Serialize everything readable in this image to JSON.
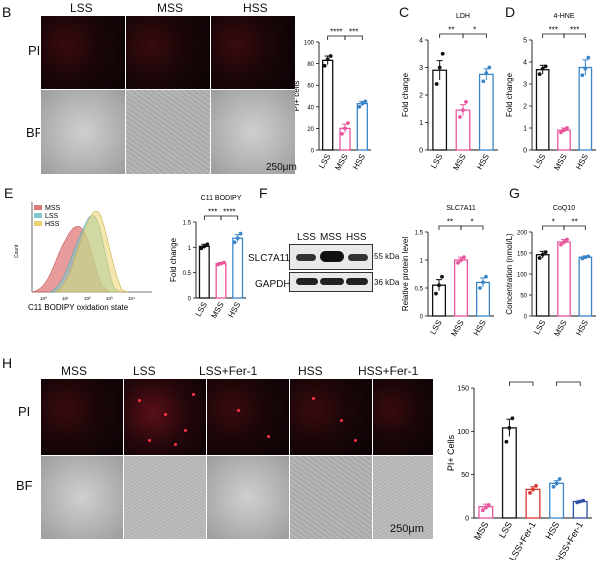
{
  "panels": {
    "B": {
      "label": "B",
      "columns": [
        "LSS",
        "MSS",
        "HSS"
      ],
      "rows": [
        "PI",
        "BF"
      ],
      "scale": "250μm"
    },
    "E": {
      "label": "E",
      "xlabel": "C11 BODIPY oxidation state",
      "ylabel": "Count",
      "legend": [
        "MSS",
        "LSS",
        "HSS"
      ]
    },
    "F": {
      "label": "F",
      "lanes": [
        "LSS",
        "MSS",
        "HSS"
      ],
      "rows": [
        "SLC7A11",
        "GAPDH"
      ],
      "sizes": [
        "55 kDa",
        "36 kDa"
      ]
    },
    "H": {
      "label": "H",
      "columns": [
        "MSS",
        "LSS",
        "LSS+Fer-1",
        "HSS",
        "HSS+Fer-1"
      ],
      "rows": [
        "PI",
        "BF"
      ],
      "scale": "250μm"
    }
  },
  "colors": {
    "LSS": "#111111",
    "MSS": "#e8559c",
    "HSS": "#3a86c8",
    "LSSFer": "#d9382e",
    "HSSFer": "#2e4fa8",
    "flow_MSS": "#e07a7a",
    "flow_LSS": "#7fc9cf",
    "flow_HSS": "#e9d36b"
  },
  "chart_data": [
    {
      "id": "B",
      "type": "bar",
      "title": "",
      "ylabel": "PI+ cells",
      "categories": [
        "LSS",
        "MSS",
        "HSS"
      ],
      "values": [
        83,
        20,
        43
      ],
      "errors": [
        4,
        4,
        2
      ],
      "points": [
        [
          78,
          84,
          87
        ],
        [
          15,
          20,
          25
        ],
        [
          40,
          43,
          45
        ]
      ],
      "ylim": [
        0,
        100
      ],
      "yticks": [
        0,
        20,
        40,
        60,
        80,
        100
      ],
      "sig": [
        {
          "from": 0,
          "to": 1,
          "label": "****"
        },
        {
          "from": 1,
          "to": 2,
          "label": "***"
        }
      ]
    },
    {
      "id": "C",
      "type": "bar",
      "title": "LDH",
      "ylabel": "Fold change",
      "categories": [
        "LSS",
        "MSS",
        "HSS"
      ],
      "values": [
        2.9,
        1.45,
        2.75
      ],
      "errors": [
        0.35,
        0.2,
        0.2
      ],
      "points": [
        [
          2.4,
          3.0,
          3.5
        ],
        [
          1.2,
          1.45,
          1.75
        ],
        [
          2.5,
          2.8,
          3.0
        ]
      ],
      "ylim": [
        0,
        4
      ],
      "yticks": [
        0,
        1,
        2,
        3,
        4
      ],
      "sig": [
        {
          "from": 0,
          "to": 1,
          "label": "**"
        },
        {
          "from": 1,
          "to": 2,
          "label": "*"
        }
      ]
    },
    {
      "id": "D",
      "type": "bar",
      "title": "4-HNE",
      "ylabel": "Fold change",
      "categories": [
        "LSS",
        "MSS",
        "HSS"
      ],
      "values": [
        3.65,
        0.9,
        3.75
      ],
      "errors": [
        0.2,
        0.1,
        0.35
      ],
      "points": [
        [
          3.45,
          3.7,
          3.8
        ],
        [
          0.8,
          0.9,
          1.0
        ],
        [
          3.4,
          3.7,
          4.2
        ]
      ],
      "ylim": [
        0,
        5
      ],
      "yticks": [
        0,
        1,
        2,
        3,
        4,
        5
      ],
      "sig": [
        {
          "from": 0,
          "to": 1,
          "label": "***"
        },
        {
          "from": 1,
          "to": 2,
          "label": "***"
        }
      ]
    },
    {
      "id": "E2",
      "type": "bar",
      "title": "C11 BODIPY",
      "ylabel": "Fold change",
      "categories": [
        "LSS",
        "MSS",
        "HSS"
      ],
      "values": [
        1.02,
        0.68,
        1.18
      ],
      "errors": [
        0.04,
        0.02,
        0.07
      ],
      "points": [
        [
          0.98,
          1.02,
          1.06
        ],
        [
          0.66,
          0.68,
          0.7
        ],
        [
          1.1,
          1.18,
          1.27
        ]
      ],
      "ylim": [
        0,
        1.5
      ],
      "yticks": [
        0,
        0.5,
        1.0,
        1.5
      ],
      "sig": [
        {
          "from": 0,
          "to": 1,
          "label": "***"
        },
        {
          "from": 1,
          "to": 2,
          "label": "****"
        }
      ]
    },
    {
      "id": "F2",
      "type": "bar",
      "title": "SLC7A11",
      "ylabel": "Relative protein level",
      "categories": [
        "LSS",
        "MSS",
        "HSS"
      ],
      "values": [
        0.55,
        1.0,
        0.6
      ],
      "errors": [
        0.1,
        0.05,
        0.08
      ],
      "points": [
        [
          0.4,
          0.55,
          0.7
        ],
        [
          0.95,
          1.0,
          1.05
        ],
        [
          0.5,
          0.6,
          0.7
        ]
      ],
      "ylim": [
        0,
        1.5
      ],
      "yticks": [
        0,
        0.5,
        1.0,
        1.5
      ],
      "sig": [
        {
          "from": 0,
          "to": 1,
          "label": "**"
        },
        {
          "from": 1,
          "to": 2,
          "label": "*"
        }
      ]
    },
    {
      "id": "G",
      "type": "bar",
      "title": "CoQ10",
      "ylabel": "Concentration (nmol/L)",
      "categories": [
        "LSS",
        "MSS",
        "HSS"
      ],
      "values": [
        146,
        176,
        140
      ],
      "errors": [
        8,
        6,
        3
      ],
      "points": [
        [
          138,
          146,
          152
        ],
        [
          170,
          176,
          182
        ],
        [
          137,
          140,
          142
        ]
      ],
      "ylim": [
        0,
        200
      ],
      "yticks": [
        0,
        50,
        100,
        150,
        200
      ],
      "sig": [
        {
          "from": 0,
          "to": 1,
          "label": "*"
        },
        {
          "from": 1,
          "to": 2,
          "label": "**"
        }
      ]
    },
    {
      "id": "H",
      "type": "bar",
      "title": "",
      "ylabel": "PI+ Cells",
      "categories": [
        "MSS",
        "LSS",
        "LSS+Fer-1",
        "HSS",
        "HSS+Fer-1"
      ],
      "values": [
        13,
        104,
        33,
        40,
        19
      ],
      "errors": [
        3,
        10,
        3,
        3,
        1
      ],
      "points": [
        [
          9,
          12,
          15
        ],
        [
          88,
          104,
          115
        ],
        [
          29,
          33,
          37
        ],
        [
          36,
          40,
          45
        ],
        [
          18,
          19,
          20
        ]
      ],
      "ylim": [
        0,
        150
      ],
      "yticks": [
        0,
        50,
        100,
        150
      ],
      "sig": [
        {
          "from": 1,
          "to": 2,
          "label": "****"
        },
        {
          "from": 3,
          "to": 4,
          "label": "*"
        }
      ]
    }
  ]
}
